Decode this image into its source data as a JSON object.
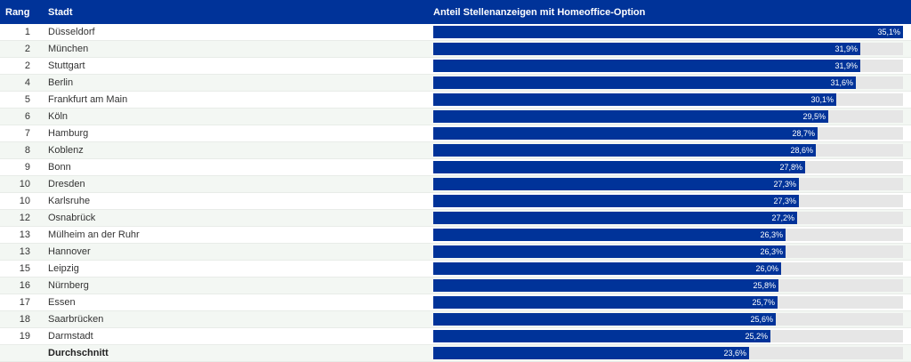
{
  "header": {
    "rank_label": "Rang",
    "city_label": "Stadt",
    "share_label": "Anteil Stellenanzeigen mit Homeoffice-Option"
  },
  "colors": {
    "bar": "#003399",
    "track": "#e6e6e6",
    "header_bg": "#003399"
  },
  "rows": [
    {
      "rank": "1",
      "city": "Düsseldorf",
      "value_label": "35,1%"
    },
    {
      "rank": "2",
      "city": "München",
      "value_label": "31,9%"
    },
    {
      "rank": "2",
      "city": "Stuttgart",
      "value_label": "31,9%"
    },
    {
      "rank": "4",
      "city": "Berlin",
      "value_label": "31,6%"
    },
    {
      "rank": "5",
      "city": "Frankfurt am Main",
      "value_label": "30,1%"
    },
    {
      "rank": "6",
      "city": "Köln",
      "value_label": "29,5%"
    },
    {
      "rank": "7",
      "city": "Hamburg",
      "value_label": "28,7%"
    },
    {
      "rank": "8",
      "city": "Koblenz",
      "value_label": "28,6%"
    },
    {
      "rank": "9",
      "city": "Bonn",
      "value_label": "27,8%"
    },
    {
      "rank": "10",
      "city": "Dresden",
      "value_label": "27,3%"
    },
    {
      "rank": "10",
      "city": "Karlsruhe",
      "value_label": "27,3%"
    },
    {
      "rank": "12",
      "city": "Osnabrück",
      "value_label": "27,2%"
    },
    {
      "rank": "13",
      "city": "Mülheim an der Ruhr",
      "value_label": "26,3%"
    },
    {
      "rank": "13",
      "city": "Hannover",
      "value_label": "26,3%"
    },
    {
      "rank": "15",
      "city": "Leipzig",
      "value_label": "26,0%"
    },
    {
      "rank": "16",
      "city": "Nürnberg",
      "value_label": "25,8%"
    },
    {
      "rank": "17",
      "city": "Essen",
      "value_label": "25,7%"
    },
    {
      "rank": "18",
      "city": "Saarbrücken",
      "value_label": "25,6%"
    },
    {
      "rank": "19",
      "city": "Darmstadt",
      "value_label": "25,2%"
    },
    {
      "rank": "",
      "city": "Durchschnitt",
      "value_label": "23,6%",
      "is_average": true
    }
  ],
  "chart_data": {
    "type": "bar",
    "orientation": "horizontal",
    "title": "",
    "xlabel": "Anteil Stellenanzeigen mit Homeoffice-Option",
    "ylabel": "Stadt",
    "xlim": [
      0,
      35.1
    ],
    "categories": [
      "Düsseldorf",
      "München",
      "Stuttgart",
      "Berlin",
      "Frankfurt am Main",
      "Köln",
      "Hamburg",
      "Koblenz",
      "Bonn",
      "Dresden",
      "Karlsruhe",
      "Osnabrück",
      "Mülheim an der Ruhr",
      "Hannover",
      "Leipzig",
      "Nürnberg",
      "Essen",
      "Saarbrücken",
      "Darmstadt",
      "Durchschnitt"
    ],
    "values": [
      35.1,
      31.9,
      31.9,
      31.6,
      30.1,
      29.5,
      28.7,
      28.6,
      27.8,
      27.3,
      27.3,
      27.2,
      26.3,
      26.3,
      26.0,
      25.8,
      25.7,
      25.6,
      25.2,
      23.6
    ],
    "grid": false,
    "legend": "none"
  }
}
